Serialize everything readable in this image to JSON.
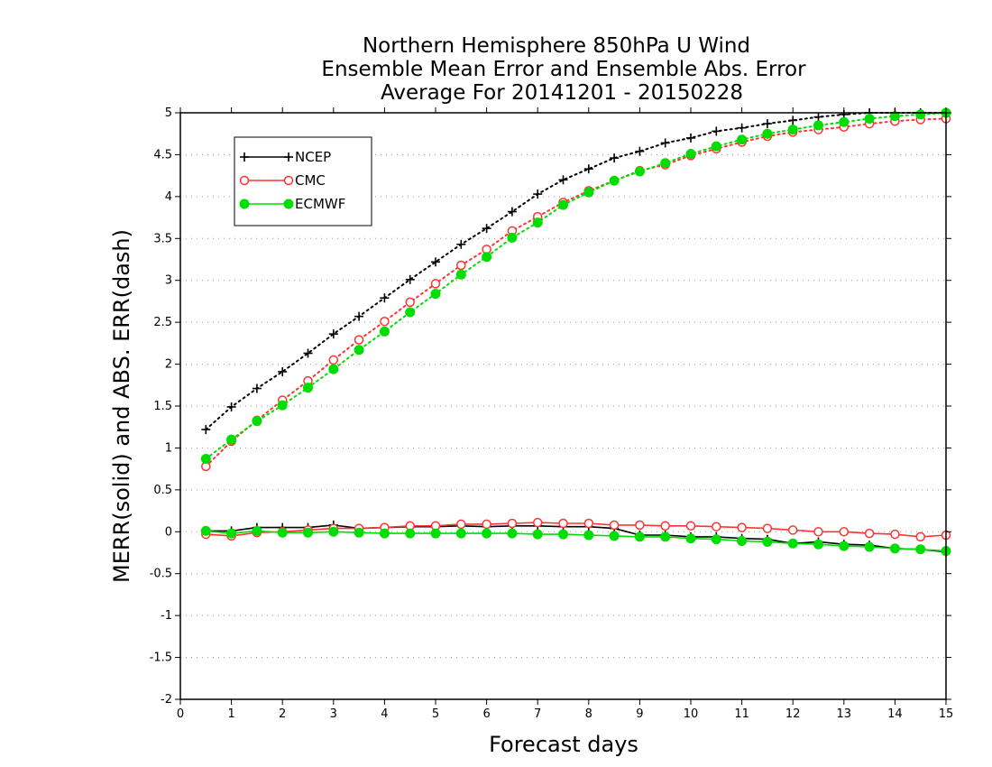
{
  "chart_data": {
    "type": "line",
    "title": [
      "Northern Hemisphere 850hPa U Wind",
      "Ensemble Mean Error and Ensemble Abs. Error",
      "Average For 20141201 - 20150228"
    ],
    "xlabel": "Forecast days",
    "ylabel": "MERR(solid) and ABS. ERR(dash)",
    "xlim": [
      0,
      15
    ],
    "ylim": [
      -2,
      5
    ],
    "xticks": [
      "0",
      "1",
      "2",
      "3",
      "4",
      "5",
      "6",
      "7",
      "8",
      "9",
      "10",
      "11",
      "12",
      "13",
      "14",
      "15"
    ],
    "yticks": [
      "-2",
      "-1.5",
      "-1",
      "-0.5",
      "0",
      "0.5",
      "1",
      "1.5",
      "2",
      "2.5",
      "3",
      "3.5",
      "4",
      "4.5",
      "5"
    ],
    "grid": "horizontal dotted",
    "legend_position": "top-left",
    "x": [
      0.5,
      1,
      1.5,
      2,
      2.5,
      3,
      3.5,
      4,
      4.5,
      5,
      5.5,
      6,
      6.5,
      7,
      7.5,
      8,
      8.5,
      9,
      9.5,
      10,
      10.5,
      11,
      11.5,
      12,
      12.5,
      13,
      13.5,
      14,
      14.5,
      15
    ],
    "series": [
      {
        "name": "NCEP",
        "color": "#000000",
        "marker": "plus",
        "abs_error": [
          1.22,
          1.49,
          1.71,
          1.91,
          2.13,
          2.36,
          2.57,
          2.79,
          3.01,
          3.22,
          3.43,
          3.62,
          3.82,
          4.03,
          4.2,
          4.33,
          4.46,
          4.54,
          4.64,
          4.7,
          4.78,
          4.82,
          4.87,
          4.91,
          4.95,
          4.98,
          5.0,
          5.0,
          5.0,
          5.0
        ],
        "mean_error": [
          0.01,
          0.01,
          0.05,
          0.05,
          0.05,
          0.08,
          0.04,
          0.05,
          0.06,
          0.06,
          0.07,
          0.06,
          0.07,
          0.07,
          0.06,
          0.06,
          0.04,
          -0.04,
          -0.04,
          -0.06,
          -0.06,
          -0.08,
          -0.09,
          -0.14,
          -0.12,
          -0.15,
          -0.16,
          -0.2,
          -0.21,
          -0.24
        ]
      },
      {
        "name": "CMC",
        "color": "#ff3333",
        "marker": "open-circle",
        "abs_error": [
          0.78,
          1.08,
          1.33,
          1.57,
          1.8,
          2.05,
          2.29,
          2.51,
          2.74,
          2.96,
          3.18,
          3.37,
          3.59,
          3.76,
          3.93,
          4.07,
          4.19,
          4.31,
          4.38,
          4.49,
          4.57,
          4.65,
          4.72,
          4.77,
          4.8,
          4.83,
          4.87,
          4.9,
          4.92,
          4.93
        ],
        "mean_error": [
          -0.03,
          -0.05,
          -0.01,
          0.0,
          0.02,
          0.04,
          0.04,
          0.05,
          0.07,
          0.07,
          0.09,
          0.09,
          0.1,
          0.11,
          0.1,
          0.1,
          0.08,
          0.08,
          0.07,
          0.07,
          0.06,
          0.05,
          0.04,
          0.02,
          0.0,
          0.0,
          -0.02,
          -0.03,
          -0.06,
          -0.04
        ]
      },
      {
        "name": "ECMWF",
        "color": "#00dd00",
        "marker": "filled-circle",
        "abs_error": [
          0.87,
          1.1,
          1.32,
          1.51,
          1.72,
          1.94,
          2.17,
          2.39,
          2.62,
          2.84,
          3.07,
          3.28,
          3.51,
          3.69,
          3.9,
          4.05,
          4.19,
          4.3,
          4.4,
          4.51,
          4.6,
          4.68,
          4.75,
          4.8,
          4.85,
          4.89,
          4.93,
          4.96,
          4.98,
          5.0
        ],
        "mean_error": [
          0.01,
          -0.02,
          0.01,
          -0.01,
          -0.01,
          0.0,
          -0.01,
          -0.02,
          -0.02,
          -0.02,
          -0.02,
          -0.02,
          -0.02,
          -0.03,
          -0.03,
          -0.04,
          -0.05,
          -0.06,
          -0.06,
          -0.08,
          -0.09,
          -0.11,
          -0.12,
          -0.14,
          -0.15,
          -0.17,
          -0.18,
          -0.2,
          -0.21,
          -0.23
        ]
      }
    ]
  }
}
